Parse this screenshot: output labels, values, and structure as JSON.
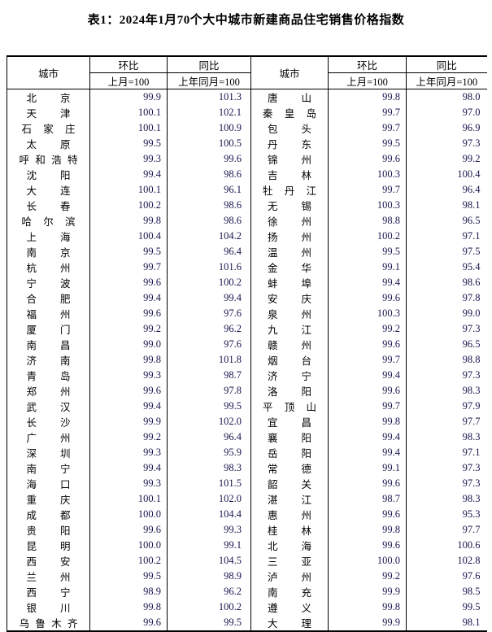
{
  "title": "表1：2024年1月70个大中城市新建商品住宅销售价格指数",
  "header": {
    "city": "城市",
    "mom": "环比",
    "yoy": "同比",
    "mom_base": "上月=100",
    "yoy_base": "上年同月=100"
  },
  "colors": {
    "text": "#000000",
    "number_text": "#16164e",
    "border": "#000000",
    "background": "#ffffff"
  },
  "table": {
    "left_rows": [
      {
        "city": "北京",
        "mom": "99.9",
        "yoy": "101.3"
      },
      {
        "city": "天津",
        "mom": "100.1",
        "yoy": "102.1"
      },
      {
        "city": "石家庄",
        "mom": "100.1",
        "yoy": "100.9"
      },
      {
        "city": "太原",
        "mom": "99.5",
        "yoy": "100.5"
      },
      {
        "city": "呼和浩特",
        "mom": "99.3",
        "yoy": "99.6"
      },
      {
        "city": "沈阳",
        "mom": "99.4",
        "yoy": "98.6"
      },
      {
        "city": "大连",
        "mom": "100.1",
        "yoy": "96.1"
      },
      {
        "city": "长春",
        "mom": "100.2",
        "yoy": "98.6"
      },
      {
        "city": "哈尔滨",
        "mom": "99.8",
        "yoy": "98.6"
      },
      {
        "city": "上海",
        "mom": "100.4",
        "yoy": "104.2"
      },
      {
        "city": "南京",
        "mom": "99.5",
        "yoy": "96.4"
      },
      {
        "city": "杭州",
        "mom": "99.7",
        "yoy": "101.6"
      },
      {
        "city": "宁波",
        "mom": "99.6",
        "yoy": "100.2"
      },
      {
        "city": "合肥",
        "mom": "99.4",
        "yoy": "99.4"
      },
      {
        "city": "福州",
        "mom": "99.6",
        "yoy": "97.6"
      },
      {
        "city": "厦门",
        "mom": "99.2",
        "yoy": "96.2"
      },
      {
        "city": "南昌",
        "mom": "99.0",
        "yoy": "97.6"
      },
      {
        "city": "济南",
        "mom": "99.8",
        "yoy": "101.8"
      },
      {
        "city": "青岛",
        "mom": "99.3",
        "yoy": "98.7"
      },
      {
        "city": "郑州",
        "mom": "99.6",
        "yoy": "97.8"
      },
      {
        "city": "武汉",
        "mom": "99.4",
        "yoy": "99.5"
      },
      {
        "city": "长沙",
        "mom": "99.9",
        "yoy": "102.0"
      },
      {
        "city": "广州",
        "mom": "99.2",
        "yoy": "96.4"
      },
      {
        "city": "深圳",
        "mom": "99.3",
        "yoy": "95.9"
      },
      {
        "city": "南宁",
        "mom": "99.4",
        "yoy": "98.3"
      },
      {
        "city": "海口",
        "mom": "99.3",
        "yoy": "101.5"
      },
      {
        "city": "重庆",
        "mom": "100.1",
        "yoy": "102.0"
      },
      {
        "city": "成都",
        "mom": "100.0",
        "yoy": "104.4"
      },
      {
        "city": "贵阳",
        "mom": "99.6",
        "yoy": "99.3"
      },
      {
        "city": "昆明",
        "mom": "100.0",
        "yoy": "99.1"
      },
      {
        "city": "西安",
        "mom": "100.2",
        "yoy": "104.5"
      },
      {
        "city": "兰州",
        "mom": "99.5",
        "yoy": "98.9"
      },
      {
        "city": "西宁",
        "mom": "98.9",
        "yoy": "96.2"
      },
      {
        "city": "银川",
        "mom": "99.8",
        "yoy": "100.2"
      },
      {
        "city": "乌鲁木齐",
        "mom": "99.6",
        "yoy": "99.5"
      }
    ],
    "right_rows": [
      {
        "city": "唐山",
        "mom": "99.8",
        "yoy": "98.0"
      },
      {
        "city": "秦皇岛",
        "mom": "99.7",
        "yoy": "97.0"
      },
      {
        "city": "包头",
        "mom": "99.7",
        "yoy": "96.9"
      },
      {
        "city": "丹东",
        "mom": "99.5",
        "yoy": "97.3"
      },
      {
        "city": "锦州",
        "mom": "99.6",
        "yoy": "99.2"
      },
      {
        "city": "吉林",
        "mom": "100.3",
        "yoy": "100.4"
      },
      {
        "city": "牡丹江",
        "mom": "99.7",
        "yoy": "96.4"
      },
      {
        "city": "无锡",
        "mom": "100.3",
        "yoy": "98.1"
      },
      {
        "city": "徐州",
        "mom": "98.8",
        "yoy": "96.5"
      },
      {
        "city": "扬州",
        "mom": "100.2",
        "yoy": "97.1"
      },
      {
        "city": "温州",
        "mom": "99.5",
        "yoy": "97.5"
      },
      {
        "city": "金华",
        "mom": "99.1",
        "yoy": "95.4"
      },
      {
        "city": "蚌埠",
        "mom": "99.4",
        "yoy": "98.6"
      },
      {
        "city": "安庆",
        "mom": "99.6",
        "yoy": "97.8"
      },
      {
        "city": "泉州",
        "mom": "100.3",
        "yoy": "99.0"
      },
      {
        "city": "九江",
        "mom": "99.2",
        "yoy": "97.3"
      },
      {
        "city": "赣州",
        "mom": "99.6",
        "yoy": "96.5"
      },
      {
        "city": "烟台",
        "mom": "99.7",
        "yoy": "98.8"
      },
      {
        "city": "济宁",
        "mom": "99.4",
        "yoy": "97.3"
      },
      {
        "city": "洛阳",
        "mom": "99.6",
        "yoy": "98.3"
      },
      {
        "city": "平顶山",
        "mom": "99.7",
        "yoy": "97.9"
      },
      {
        "city": "宜昌",
        "mom": "99.8",
        "yoy": "97.7"
      },
      {
        "city": "襄阳",
        "mom": "99.4",
        "yoy": "98.3"
      },
      {
        "city": "岳阳",
        "mom": "99.4",
        "yoy": "97.1"
      },
      {
        "city": "常德",
        "mom": "99.1",
        "yoy": "97.3"
      },
      {
        "city": "韶关",
        "mom": "99.6",
        "yoy": "97.3"
      },
      {
        "city": "湛江",
        "mom": "98.7",
        "yoy": "98.3"
      },
      {
        "city": "惠州",
        "mom": "99.6",
        "yoy": "95.3"
      },
      {
        "city": "桂林",
        "mom": "99.8",
        "yoy": "97.7"
      },
      {
        "city": "北海",
        "mom": "99.6",
        "yoy": "100.6"
      },
      {
        "city": "三亚",
        "mom": "100.0",
        "yoy": "102.8"
      },
      {
        "city": "泸州",
        "mom": "99.2",
        "yoy": "97.6"
      },
      {
        "city": "南充",
        "mom": "99.9",
        "yoy": "98.5"
      },
      {
        "city": "遵义",
        "mom": "99.8",
        "yoy": "99.5"
      },
      {
        "city": "大理",
        "mom": "99.9",
        "yoy": "98.1"
      }
    ]
  }
}
